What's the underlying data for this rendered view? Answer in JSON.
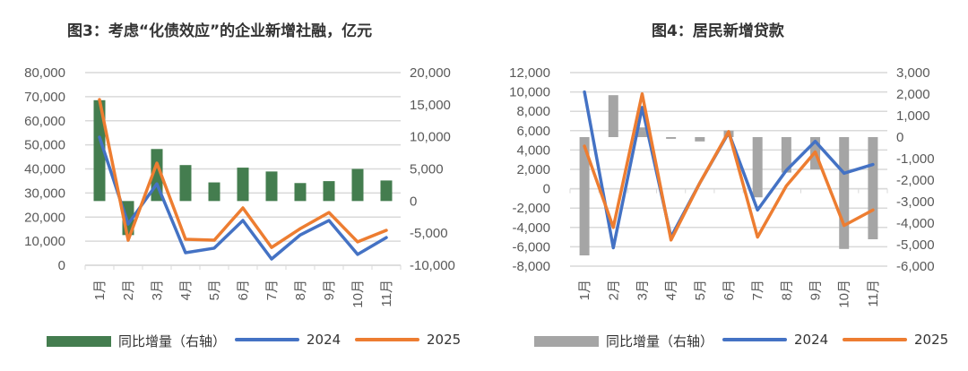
{
  "chart_data": [
    {
      "type": "bar+line",
      "title": "图3：考虑“化债效应”的企业新增社融，亿元",
      "categories": [
        "1月",
        "2月",
        "3月",
        "4月",
        "5月",
        "6月",
        "7月",
        "8月",
        "9月",
        "10月",
        "11月"
      ],
      "left_axis": {
        "ylim": [
          0,
          80000
        ],
        "ticks": [
          "0",
          "10,000",
          "20,000",
          "30,000",
          "40,000",
          "50,000",
          "60,000",
          "70,000",
          "80,000"
        ]
      },
      "right_axis": {
        "ylim": [
          -10000,
          20000
        ],
        "ticks": [
          "-10,000",
          "-5,000",
          "0",
          "5,000",
          "10,000",
          "15,000",
          "20,000"
        ]
      },
      "series": [
        {
          "name": "同比增量（右轴）",
          "kind": "bar",
          "axis": "right",
          "color": "#447d4f",
          "values": [
            15700,
            -5300,
            8100,
            5600,
            2900,
            5200,
            4600,
            2800,
            3100,
            5000,
            3200
          ]
        },
        {
          "name": "2024",
          "kind": "line",
          "axis": "left",
          "color": "#4472c4",
          "values": [
            53200,
            17100,
            33800,
            5200,
            7100,
            18600,
            2600,
            12600,
            18600,
            4500,
            11500
          ]
        },
        {
          "name": "2025",
          "kind": "line",
          "axis": "left",
          "color": "#ed7d31",
          "values": [
            68800,
            10400,
            42400,
            10800,
            10400,
            23800,
            7400,
            15200,
            21900,
            9700,
            14500
          ]
        }
      ]
    },
    {
      "type": "bar+line",
      "title": "图4：居民新增贷款",
      "categories": [
        "1月",
        "2月",
        "3月",
        "4月",
        "5月",
        "6月",
        "7月",
        "8月",
        "9月",
        "10月",
        "11月"
      ],
      "left_axis": {
        "ylim": [
          -8000,
          12000
        ],
        "ticks": [
          "-8,000",
          "-6,000",
          "-4,000",
          "-2,000",
          "0",
          "2,000",
          "4,000",
          "6,000",
          "8,000",
          "10,000",
          "12,000"
        ]
      },
      "right_axis": {
        "ylim": [
          -6000,
          3000
        ],
        "ticks": [
          "-6,000",
          "-5,000",
          "-4,000",
          "-3,000",
          "-2,000",
          "-1,000",
          "0",
          "1,000",
          "2,000",
          "3,000"
        ]
      },
      "series": [
        {
          "name": "同比增量（右轴）",
          "kind": "bar",
          "axis": "right",
          "color": "#a5a5a5",
          "values": [
            -5500,
            1950,
            450,
            -80,
            -200,
            300,
            -2800,
            -1650,
            -1500,
            -5200,
            -4750
          ]
        },
        {
          "name": "2024",
          "kind": "line",
          "axis": "left",
          "color": "#4472c4",
          "values": [
            10000,
            -6100,
            8400,
            -5000,
            600,
            5800,
            -2200,
            1900,
            4900,
            1600,
            2500
          ]
        },
        {
          "name": "2025",
          "kind": "line",
          "axis": "left",
          "color": "#ed7d31",
          "values": [
            4400,
            -4000,
            9800,
            -5300,
            600,
            5900,
            -5000,
            300,
            3800,
            -3800,
            -2200
          ]
        }
      ]
    }
  ]
}
